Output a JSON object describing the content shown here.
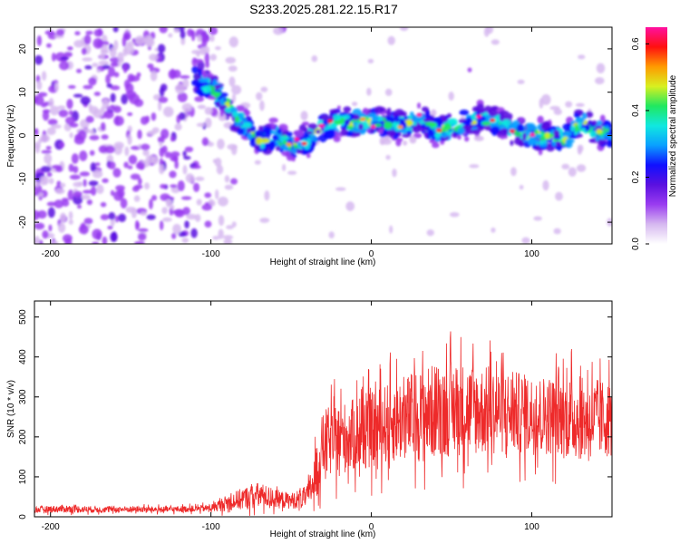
{
  "title": "S233.2025.281.22.15.R17",
  "chart_data": [
    {
      "type": "heatmap",
      "name": "spectrogram",
      "xlabel": "Height of straight line (km)",
      "ylabel": "Frequency (Hz)",
      "xlim": [
        -210,
        150
      ],
      "ylim": [
        -25,
        25
      ],
      "xticks": [
        -200,
        -100,
        0,
        100
      ],
      "yticks": [
        -20,
        -10,
        0,
        10,
        20
      ],
      "colorbar": {
        "label": "Normalized spectral amplitude",
        "range": [
          0.0,
          0.65
        ],
        "ticks": [
          0.0,
          0.2,
          0.4,
          0.6
        ],
        "colormap": [
          "#ffffff",
          "#d6b8f0",
          "#9a3cf0",
          "#5a10e0",
          "#1010ff",
          "#0aa0ff",
          "#10e8e0",
          "#20e860",
          "#d8f020",
          "#ff9a00",
          "#ff1010",
          "#ff10a0"
        ]
      },
      "signal_track": {
        "x": [
          -110,
          -100,
          -90,
          -80,
          -70,
          -60,
          -50,
          -40,
          -30,
          -20,
          -10,
          0,
          10,
          20,
          30,
          40,
          50,
          60,
          70,
          80,
          90,
          100,
          110,
          120,
          130,
          140,
          150
        ],
        "freq_hz": [
          13,
          11,
          7,
          3,
          -1,
          0,
          -2,
          -1,
          2,
          3,
          3,
          3,
          3,
          2,
          4,
          1,
          2,
          3,
          4,
          3,
          1,
          0,
          0,
          -1,
          3,
          1,
          0
        ]
      }
    },
    {
      "type": "line",
      "name": "snr",
      "xlabel": "Height of straight line (km)",
      "ylabel": "SNR (10 * v/v)",
      "xlim": [
        -210,
        150
      ],
      "ylim": [
        0,
        540
      ],
      "xticks": [
        -200,
        -100,
        0,
        100
      ],
      "yticks": [
        0,
        100,
        200,
        300,
        400,
        500
      ],
      "color": "#ee2a2a",
      "envelope": {
        "x": [
          -210,
          -190,
          -170,
          -150,
          -130,
          -110,
          -100,
          -90,
          -80,
          -70,
          -60,
          -50,
          -40,
          -35,
          -30,
          -25,
          -20,
          -10,
          0,
          10,
          20,
          30,
          40,
          50,
          60,
          70,
          80,
          90,
          100,
          110,
          120,
          130,
          140,
          150
        ],
        "mean": [
          18,
          20,
          18,
          19,
          18,
          20,
          22,
          35,
          45,
          55,
          45,
          40,
          50,
          100,
          180,
          190,
          195,
          205,
          215,
          235,
          245,
          255,
          265,
          270,
          270,
          265,
          265,
          260,
          255,
          255,
          250,
          245,
          245,
          245
        ],
        "spread": [
          10,
          12,
          10,
          10,
          10,
          10,
          12,
          25,
          35,
          40,
          30,
          25,
          35,
          80,
          110,
          110,
          110,
          115,
          120,
          125,
          135,
          145,
          150,
          150,
          145,
          140,
          135,
          130,
          125,
          125,
          130,
          130,
          125,
          120
        ]
      }
    }
  ]
}
